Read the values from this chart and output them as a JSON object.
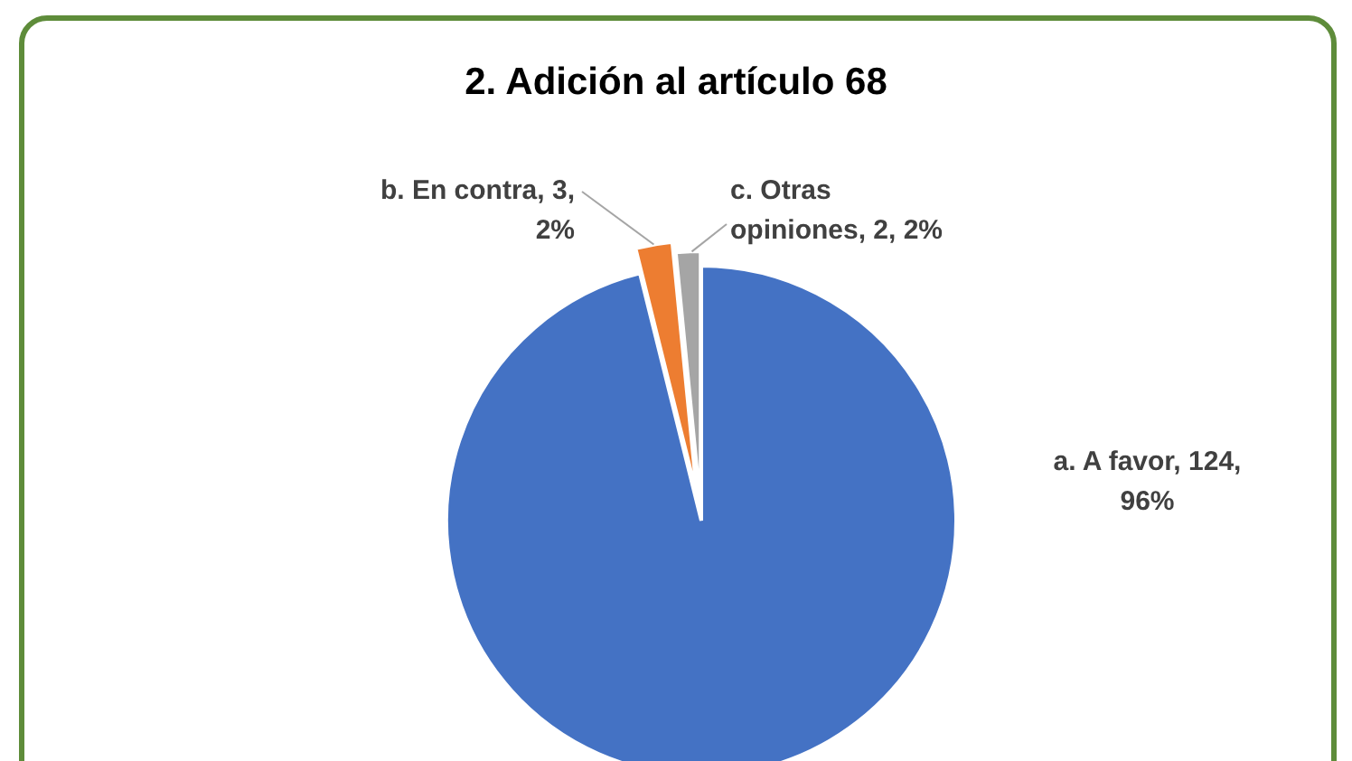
{
  "chart_data": {
    "type": "pie",
    "title": "2. Adición al artículo 68",
    "categories": [
      "a. A favor",
      "b. En contra",
      "c. Otras opiniones"
    ],
    "values": [
      124,
      3,
      2
    ],
    "colors": [
      "#4472c4",
      "#ed7d31",
      "#a5a5a5"
    ],
    "value_labels": [
      "124, 96%",
      "3, 2%",
      "2, 2%"
    ]
  }
}
